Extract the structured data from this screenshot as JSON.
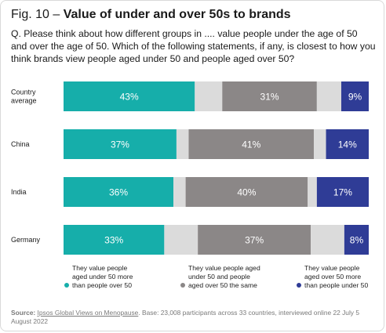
{
  "title": {
    "prefix": "Fig. 10 –",
    "main": "Value of under and over 50s to brands"
  },
  "question": "Q. Please think about how different groups in .... value people under the age of 50 and over the age of 50. Which of the following statements, if any, is closest to how you think brands view people aged under 50 and people aged over 50?",
  "colors": {
    "under50": "#16aeaa",
    "gap": "#dbdbdb",
    "same": "#8b8787",
    "over50": "#2f3c96"
  },
  "legend": [
    {
      "key": "under50",
      "text": "They value people\naged under 50 more\nthan people over 50"
    },
    {
      "key": "same",
      "text": "They value people aged\nunder 50 and people\naged over 50 the same"
    },
    {
      "key": "over50",
      "text": "They value people\naged over 50 more\nthan people under 50"
    }
  ],
  "source": {
    "label": "Source:",
    "link": "Ipsos Global Views on Menopause",
    "rest": ". Base: 23,008 participants across 33 countries, interviewed online 22 July 5 August 2022"
  },
  "chart_data": {
    "type": "bar",
    "orientation": "horizontal",
    "stacked": true,
    "categories": [
      "Country\naverage",
      "China",
      "India",
      "Germany"
    ],
    "series": [
      {
        "key": "under50",
        "values": [
          43,
          37,
          36,
          33
        ],
        "labels": [
          "43%",
          "37%",
          "36%",
          "33%"
        ]
      },
      {
        "key": "gap_a",
        "values": [
          9,
          4,
          4,
          11
        ],
        "labels": [
          "",
          "",
          "",
          ""
        ]
      },
      {
        "key": "same",
        "values": [
          31,
          41,
          40,
          37
        ],
        "labels": [
          "31%",
          "41%",
          "40%",
          "37%"
        ]
      },
      {
        "key": "gap_b",
        "values": [
          8,
          4,
          3,
          11
        ],
        "labels": [
          "",
          "",
          "",
          ""
        ]
      },
      {
        "key": "over50",
        "values": [
          9,
          14,
          17,
          8
        ],
        "labels": [
          "9%",
          "14%",
          "17%",
          "8%"
        ]
      }
    ],
    "xlim": [
      0,
      100
    ]
  }
}
